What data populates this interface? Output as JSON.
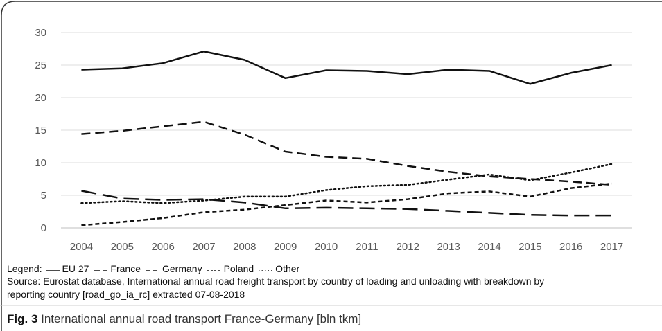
{
  "chart_data": {
    "type": "line",
    "categories": [
      "2004",
      "2005",
      "2006",
      "2007",
      "2008",
      "2009",
      "2010",
      "2011",
      "2012",
      "2013",
      "2014",
      "2015",
      "2016",
      "2017"
    ],
    "ylim": [
      0,
      30
    ],
    "yticks": [
      0,
      5,
      10,
      15,
      20,
      25,
      30
    ],
    "grid": true,
    "series": [
      {
        "name": "EU 27",
        "style": "solid",
        "values": [
          24.3,
          24.5,
          25.3,
          27.1,
          25.8,
          23.0,
          24.2,
          24.1,
          23.6,
          24.3,
          24.1,
          22.1,
          23.8,
          25.0
        ]
      },
      {
        "name": "France",
        "style": "longdash",
        "values": [
          5.7,
          4.5,
          4.3,
          4.4,
          3.9,
          3.0,
          3.1,
          3.0,
          2.9,
          2.6,
          2.3,
          2.0,
          1.9,
          1.9
        ]
      },
      {
        "name": "Germany",
        "style": "dash",
        "values": [
          14.4,
          14.9,
          15.6,
          16.3,
          14.3,
          11.7,
          10.9,
          10.6,
          9.5,
          8.6,
          7.9,
          7.5,
          7.1,
          6.6
        ]
      },
      {
        "name": "Poland",
        "style": "shortdash",
        "values": [
          0.4,
          0.9,
          1.5,
          2.4,
          2.8,
          3.5,
          4.2,
          3.9,
          4.4,
          5.3,
          5.6,
          4.8,
          6.1,
          6.8
        ]
      },
      {
        "name": "Other",
        "style": "dotted",
        "values": [
          3.8,
          4.1,
          3.8,
          4.2,
          4.8,
          4.8,
          5.8,
          6.4,
          6.6,
          7.4,
          8.2,
          7.3,
          8.5,
          9.8
        ]
      }
    ]
  },
  "legend": {
    "label": "Legend:",
    "items": [
      {
        "name": "EU 27",
        "style": "solid"
      },
      {
        "name": "France",
        "style": "longdash"
      },
      {
        "name": "Germany",
        "style": "dash"
      },
      {
        "name": "Poland",
        "style": "shortdash"
      },
      {
        "name": "Other",
        "style": "dotted"
      }
    ]
  },
  "source": {
    "line1": "Source: Eurostat database, International annual road freight transport by country of loading and unloading with breakdown by",
    "line2": "reporting country [road_go_ia_rc] extracted 07-08-2018"
  },
  "caption": {
    "label": "Fig. 3",
    "text": " International annual road transport France-Germany [bln tkm]"
  }
}
